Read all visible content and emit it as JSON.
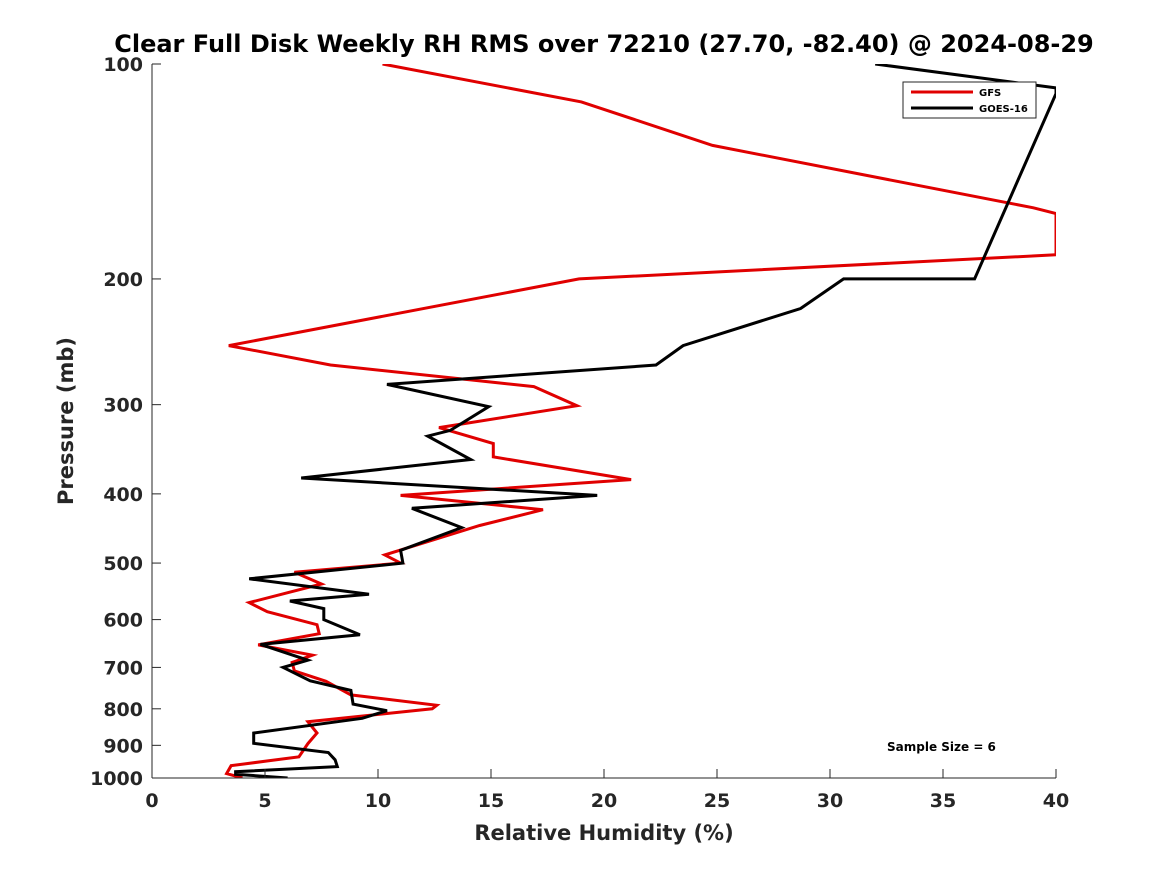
{
  "chart_data": {
    "type": "line",
    "title": "Clear Full Disk Weekly RH RMS over 72210 (27.70, -82.40) @ 2024-08-29",
    "xlabel": "Relative Humidity (%)",
    "ylabel": "Pressure (mb)",
    "xlim": [
      0,
      40
    ],
    "ylim": [
      1000,
      100
    ],
    "yscale": "log",
    "xticks": [
      "0",
      "5",
      "10",
      "15",
      "20",
      "25",
      "30",
      "35",
      "40"
    ],
    "yticks": [
      "100",
      "200",
      "300",
      "400",
      "500",
      "600",
      "700",
      "800",
      "900",
      "1000"
    ],
    "legend_position": "top-right",
    "annotation": "Sample Size = 6",
    "series": [
      {
        "name": "GFS",
        "color": "#e00000",
        "x": [
          10.2,
          19.0,
          24.8,
          39.0,
          40.0,
          40.0,
          18.9,
          3.4,
          7.9,
          16.9,
          18.8,
          12.7,
          15.1,
          15.1,
          21.2,
          11.0,
          17.3,
          14.5,
          10.3,
          11.0,
          6.3,
          7.5,
          4.3,
          5.1,
          7.3,
          7.4,
          4.7,
          7.1,
          6.2,
          6.3,
          7.7,
          8.8,
          12.6,
          12.4,
          6.9,
          7.3,
          6.9,
          6.5,
          3.5,
          3.3,
          4.0
        ],
        "y": [
          100,
          113,
          130,
          159,
          162,
          185,
          200,
          248,
          264,
          283,
          301,
          323,
          340,
          355,
          382,
          402,
          421,
          443,
          487,
          500,
          515,
          535,
          568,
          585,
          610,
          628,
          651,
          673,
          689,
          708,
          732,
          765,
          791,
          800,
          834,
          865,
          895,
          934,
          961,
          986,
          1000
        ]
      },
      {
        "name": "GOES-16",
        "color": "#000000",
        "x": [
          32.0,
          40.0,
          40.0,
          36.4,
          30.6,
          28.7,
          23.5,
          22.3,
          10.4,
          14.9,
          13.2,
          12.2,
          14.1,
          6.6,
          19.7,
          11.5,
          13.7,
          11.0,
          11.1,
          4.3,
          9.6,
          6.1,
          7.6,
          7.6,
          9.2,
          4.8,
          6.9,
          5.8,
          7.0,
          8.8,
          8.9,
          10.4,
          9.3,
          4.5,
          4.5,
          7.8,
          8.1,
          8.2,
          3.7,
          3.7,
          6.0
        ],
        "y": [
          100,
          108,
          110,
          200,
          200,
          220,
          248,
          264,
          281,
          302,
          326,
          332,
          358,
          380,
          402,
          419,
          446,
          480,
          500,
          526,
          553,
          565,
          579,
          600,
          630,
          650,
          684,
          700,
          731,
          754,
          788,
          805,
          825,
          865,
          894,
          921,
          943,
          964,
          980,
          988,
          1000
        ]
      }
    ]
  }
}
